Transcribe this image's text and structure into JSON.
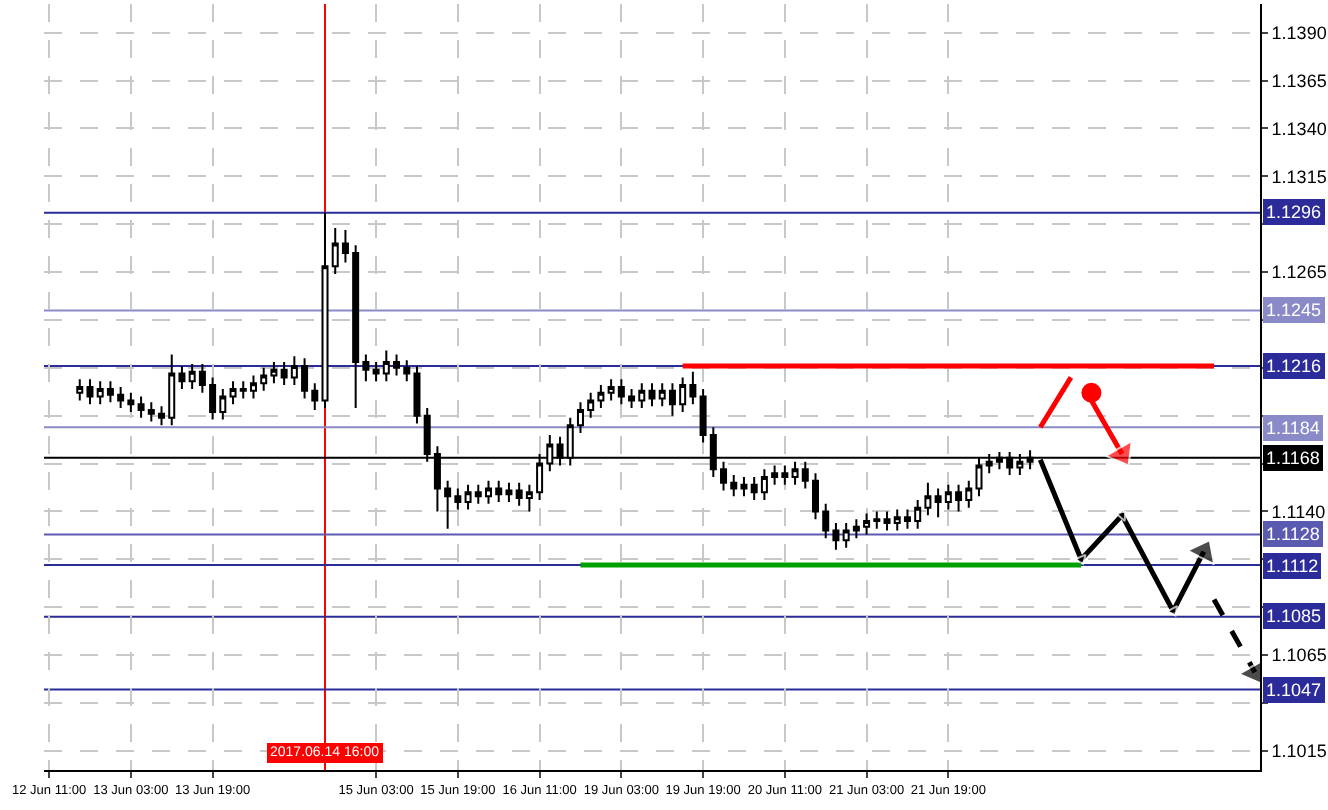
{
  "chart_data": {
    "type": "candlestick",
    "color": "#000000",
    "categories": [
      "12 Jun 11:00",
      null,
      null,
      null,
      null,
      null,
      null,
      null,
      "13 Jun 03:00",
      null,
      null,
      null,
      null,
      null,
      null,
      null,
      "13 Jun 19:00",
      null,
      null,
      null,
      null,
      null,
      null,
      null,
      null,
      null,
      null,
      "2017.06.14 16:00",
      null,
      null,
      null,
      null,
      "15 Jun 03:00",
      null,
      null,
      null,
      null,
      null,
      null,
      null,
      "15 Jun 19:00",
      null,
      null,
      null,
      null,
      null,
      null,
      null,
      "16 Jun 11:00",
      null,
      null,
      null,
      null,
      null,
      null,
      null,
      "19 Jun 03:00",
      null,
      null,
      null,
      null,
      null,
      null,
      null,
      "19 Jun 19:00",
      null,
      null,
      null,
      null,
      null,
      null,
      null,
      "20 Jun 11:00",
      null,
      null,
      null,
      null,
      null,
      null,
      null,
      "21 Jun 03:00",
      null,
      null,
      null,
      null,
      null,
      null,
      null,
      "21 Jun 19:00",
      null,
      null,
      null,
      null,
      null,
      null,
      null,
      null,
      null,
      null,
      null,
      null,
      null,
      null,
      null,
      null,
      null,
      null,
      null,
      null,
      null,
      null,
      null,
      null,
      null,
      null,
      null,
      null,
      null,
      null
    ],
    "ohlc": [
      null,
      null,
      null,
      [
        1.1202,
        1.1209,
        1.1198,
        1.1205
      ],
      [
        1.1205,
        1.1209,
        1.1196,
        1.12
      ],
      [
        1.12,
        1.1208,
        1.1196,
        1.1204
      ],
      [
        1.1204,
        1.1208,
        1.1197,
        1.1201
      ],
      [
        1.1201,
        1.1205,
        1.1194,
        1.1198
      ],
      [
        1.1198,
        1.1202,
        1.1192,
        1.1196
      ],
      [
        1.1196,
        1.12,
        1.1189,
        1.1193
      ],
      [
        1.1193,
        1.1197,
        1.1187,
        1.1191
      ],
      [
        1.1191,
        1.1195,
        1.1185,
        1.1189
      ],
      [
        1.1189,
        1.1222,
        1.1185,
        1.1212
      ],
      [
        1.1212,
        1.1216,
        1.1204,
        1.1208
      ],
      [
        1.1208,
        1.1217,
        1.1204,
        1.1213
      ],
      [
        1.1213,
        1.1217,
        1.1202,
        1.1206
      ],
      [
        1.1206,
        1.121,
        1.1188,
        1.1192
      ],
      [
        1.1192,
        1.1204,
        1.1188,
        1.12
      ],
      [
        1.12,
        1.1208,
        1.1196,
        1.1204
      ],
      [
        1.1204,
        1.1208,
        1.1199,
        1.1203
      ],
      [
        1.1203,
        1.1211,
        1.1199,
        1.1207
      ],
      [
        1.1207,
        1.1215,
        1.1203,
        1.1211
      ],
      [
        1.1211,
        1.1218,
        1.1207,
        1.1214
      ],
      [
        1.1214,
        1.1218,
        1.1206,
        1.121
      ],
      [
        1.121,
        1.1221,
        1.1206,
        1.1216
      ],
      [
        1.1216,
        1.122,
        1.1199,
        1.1203
      ],
      [
        1.1203,
        1.1207,
        1.1193,
        1.1198
      ],
      [
        1.1198,
        1.1296,
        1.1194,
        1.1268
      ],
      [
        1.1268,
        1.1288,
        1.1264,
        1.128
      ],
      [
        1.128,
        1.1287,
        1.127,
        1.1275
      ],
      [
        1.1275,
        1.1279,
        1.1194,
        1.1218
      ],
      [
        1.1218,
        1.1222,
        1.1208,
        1.1214
      ],
      [
        1.1214,
        1.1218,
        1.1208,
        1.1212
      ],
      [
        1.1212,
        1.1224,
        1.1208,
        1.1218
      ],
      [
        1.1218,
        1.1222,
        1.1211,
        1.1215
      ],
      [
        1.1215,
        1.1219,
        1.1208,
        1.1212
      ],
      [
        1.1212,
        1.1216,
        1.1186,
        1.119
      ],
      [
        1.119,
        1.1194,
        1.1166,
        1.117
      ],
      [
        1.117,
        1.1174,
        1.114,
        1.1152
      ],
      [
        1.1152,
        1.1156,
        1.1131,
        1.1148
      ],
      [
        1.1148,
        1.1152,
        1.1141,
        1.1145
      ],
      [
        1.1145,
        1.1154,
        1.1141,
        1.115
      ],
      [
        1.115,
        1.1154,
        1.1144,
        1.1148
      ],
      [
        1.1148,
        1.1156,
        1.1144,
        1.1152
      ],
      [
        1.1152,
        1.1156,
        1.1145,
        1.1149
      ],
      [
        1.1149,
        1.1155,
        1.1145,
        1.1151
      ],
      [
        1.1151,
        1.1155,
        1.1143,
        1.1147
      ],
      [
        1.1147,
        1.1154,
        1.114,
        1.115
      ],
      [
        1.115,
        1.117,
        1.1146,
        1.1165
      ],
      [
        1.1165,
        1.118,
        1.1161,
        1.1175
      ],
      [
        1.1175,
        1.1179,
        1.1164,
        1.1168
      ],
      [
        1.1168,
        1.1189,
        1.1164,
        1.1185
      ],
      [
        1.1185,
        1.1197,
        1.1181,
        1.1193
      ],
      [
        1.1193,
        1.1202,
        1.1189,
        1.1198
      ],
      [
        1.1198,
        1.1206,
        1.1194,
        1.1202
      ],
      [
        1.1202,
        1.1209,
        1.1198,
        1.1205
      ],
      [
        1.1205,
        1.1209,
        1.1196,
        1.12
      ],
      [
        1.12,
        1.1204,
        1.1194,
        1.1198
      ],
      [
        1.1198,
        1.1207,
        1.1194,
        1.1203
      ],
      [
        1.1203,
        1.1207,
        1.1195,
        1.1199
      ],
      [
        1.1199,
        1.1207,
        1.1195,
        1.1203
      ],
      [
        1.1203,
        1.1207,
        1.119,
        1.1196
      ],
      [
        1.1196,
        1.121,
        1.1192,
        1.1206
      ],
      [
        1.1206,
        1.1213,
        1.1196,
        1.12
      ],
      [
        1.12,
        1.1204,
        1.1176,
        1.118
      ],
      [
        1.118,
        1.1184,
        1.1158,
        1.1162
      ],
      [
        1.1162,
        1.1166,
        1.1151,
        1.1155
      ],
      [
        1.1155,
        1.1159,
        1.1148,
        1.1152
      ],
      [
        1.1152,
        1.1158,
        1.1148,
        1.1154
      ],
      [
        1.1154,
        1.1158,
        1.1146,
        1.115
      ],
      [
        1.115,
        1.1162,
        1.1146,
        1.1158
      ],
      [
        1.1158,
        1.1164,
        1.1154,
        1.116
      ],
      [
        1.116,
        1.1164,
        1.1154,
        1.1158
      ],
      [
        1.1158,
        1.1166,
        1.1154,
        1.1162
      ],
      [
        1.1162,
        1.1166,
        1.1152,
        1.1156
      ],
      [
        1.1156,
        1.116,
        1.1136,
        1.114
      ],
      [
        1.114,
        1.1144,
        1.1126,
        1.113
      ],
      [
        1.113,
        1.1134,
        1.112,
        1.1125
      ],
      [
        1.1125,
        1.1134,
        1.1121,
        1.113
      ],
      [
        1.113,
        1.1136,
        1.1126,
        1.1132
      ],
      [
        1.1132,
        1.1139,
        1.1128,
        1.1135
      ],
      [
        1.1135,
        1.114,
        1.1131,
        1.1136
      ],
      [
        1.1136,
        1.114,
        1.113,
        1.1134
      ],
      [
        1.1134,
        1.1141,
        1.113,
        1.1137
      ],
      [
        1.1137,
        1.1141,
        1.1131,
        1.1135
      ],
      [
        1.1135,
        1.1146,
        1.1131,
        1.1142
      ],
      [
        1.1142,
        1.1155,
        1.1138,
        1.1148
      ],
      [
        1.1148,
        1.1152,
        1.1137,
        1.1145
      ],
      [
        1.1145,
        1.1154,
        1.1141,
        1.115
      ],
      [
        1.115,
        1.1154,
        1.114,
        1.1146
      ],
      [
        1.1146,
        1.1156,
        1.1142,
        1.1152
      ],
      [
        1.1152,
        1.1168,
        1.1148,
        1.1164
      ],
      [
        1.1164,
        1.117,
        1.116,
        1.1166
      ],
      [
        1.1166,
        1.1171,
        1.1162,
        1.1168
      ],
      [
        1.1168,
        1.1171,
        1.1159,
        1.1163
      ],
      [
        1.1163,
        1.117,
        1.1159,
        1.1166
      ],
      [
        1.1166,
        1.1172,
        1.1162,
        1.1168
      ],
      null,
      null,
      null,
      null,
      null,
      null,
      null,
      null,
      null,
      null,
      null,
      null,
      null,
      null,
      null,
      null,
      null,
      null,
      null,
      null,
      null,
      null
    ],
    "series": [
      {
        "type": "line",
        "color": "#ff0000",
        "values": [
          null,
          null,
          null,
          null,
          null,
          null,
          null,
          null,
          null,
          null,
          null,
          null,
          null,
          null,
          null,
          null,
          null,
          null,
          null,
          null,
          null,
          null,
          null,
          null,
          null,
          null,
          null,
          null,
          null,
          null,
          null,
          null,
          null,
          null,
          null,
          null,
          null,
          null,
          null,
          null,
          null,
          null,
          null,
          null,
          null,
          null,
          null,
          null,
          null,
          null,
          null,
          null,
          null,
          null,
          null,
          null,
          null,
          null,
          null,
          null,
          null,
          null,
          1.1216,
          null,
          null,
          null,
          null,
          null,
          null,
          null,
          null,
          null,
          null,
          null,
          null,
          null,
          null,
          null,
          null,
          null,
          null,
          null,
          null,
          null,
          null,
          null,
          null,
          null,
          null,
          null,
          null,
          null,
          null,
          null,
          null,
          null,
          null,
          null,
          null,
          null,
          null,
          null,
          null,
          null,
          null,
          null,
          null,
          null,
          null,
          null,
          null,
          null,
          null,
          null,
          1.1216,
          null,
          null,
          null,
          null
        ]
      },
      {
        "type": "line",
        "color": "#00a000",
        "values": [
          null,
          null,
          null,
          null,
          null,
          null,
          null,
          null,
          null,
          null,
          null,
          null,
          null,
          null,
          null,
          null,
          null,
          null,
          null,
          null,
          null,
          null,
          null,
          null,
          null,
          null,
          null,
          null,
          null,
          null,
          null,
          null,
          null,
          null,
          null,
          null,
          null,
          null,
          null,
          null,
          null,
          null,
          null,
          null,
          null,
          null,
          null,
          null,
          null,
          null,
          null,
          null,
          1.1112,
          null,
          null,
          null,
          null,
          null,
          null,
          null,
          null,
          null,
          null,
          null,
          null,
          null,
          null,
          null,
          null,
          null,
          null,
          null,
          null,
          null,
          null,
          null,
          null,
          null,
          null,
          null,
          null,
          null,
          null,
          null,
          null,
          null,
          null,
          null,
          null,
          null,
          null,
          null,
          null,
          null,
          null,
          null,
          null,
          null,
          null,
          null,
          null,
          1.1112,
          null,
          null,
          null,
          null,
          null,
          null,
          null,
          null,
          null,
          null,
          null,
          null,
          null,
          null,
          null,
          null,
          null
        ]
      },
      {
        "type": "line",
        "color": "#ff0000",
        "values": [
          null,
          null,
          null,
          null,
          null,
          null,
          null,
          null,
          null,
          null,
          null,
          null,
          null,
          null,
          null,
          null,
          null,
          null,
          null,
          null,
          null,
          null,
          null,
          null,
          null,
          null,
          null,
          null,
          null,
          null,
          null,
          null,
          null,
          null,
          null,
          null,
          null,
          null,
          null,
          null,
          null,
          null,
          null,
          null,
          null,
          null,
          null,
          null,
          null,
          null,
          null,
          null,
          null,
          null,
          null,
          null,
          null,
          null,
          null,
          null,
          null,
          null,
          null,
          null,
          null,
          null,
          null,
          null,
          null,
          null,
          null,
          null,
          null,
          null,
          null,
          null,
          null,
          null,
          null,
          null,
          null,
          null,
          null,
          null,
          null,
          null,
          null,
          null,
          null,
          null,
          null,
          null,
          null,
          null,
          null,
          null,
          null,
          1.1184,
          null,
          null,
          1.121,
          null,
          null,
          null,
          null,
          null,
          null,
          null,
          null,
          null,
          null,
          null,
          null,
          null,
          null,
          null,
          null,
          null,
          null
        ]
      },
      {
        "type": "scatter",
        "color": "#ff0000",
        "marker": "circle",
        "values": [
          null,
          null,
          null,
          null,
          null,
          null,
          null,
          null,
          null,
          null,
          null,
          null,
          null,
          null,
          null,
          null,
          null,
          null,
          null,
          null,
          null,
          null,
          null,
          null,
          null,
          null,
          null,
          null,
          null,
          null,
          null,
          null,
          null,
          null,
          null,
          null,
          null,
          null,
          null,
          null,
          null,
          null,
          null,
          null,
          null,
          null,
          null,
          null,
          null,
          null,
          null,
          null,
          null,
          null,
          null,
          null,
          null,
          null,
          null,
          null,
          null,
          null,
          null,
          null,
          null,
          null,
          null,
          null,
          null,
          null,
          null,
          null,
          null,
          null,
          null,
          null,
          null,
          null,
          null,
          null,
          null,
          null,
          null,
          null,
          null,
          null,
          null,
          null,
          null,
          null,
          null,
          null,
          null,
          null,
          null,
          null,
          null,
          null,
          null,
          null,
          null,
          null,
          1.1202,
          null,
          null,
          null,
          null,
          null,
          null,
          null,
          null,
          null,
          null,
          null,
          null,
          null,
          null,
          null,
          null
        ]
      },
      {
        "type": "line",
        "color": "#ff0000",
        "marker": "triangle",
        "values": [
          null,
          null,
          null,
          null,
          null,
          null,
          null,
          null,
          null,
          null,
          null,
          null,
          null,
          null,
          null,
          null,
          null,
          null,
          null,
          null,
          null,
          null,
          null,
          null,
          null,
          null,
          null,
          null,
          null,
          null,
          null,
          null,
          null,
          null,
          null,
          null,
          null,
          null,
          null,
          null,
          null,
          null,
          null,
          null,
          null,
          null,
          null,
          null,
          null,
          null,
          null,
          null,
          null,
          null,
          null,
          null,
          null,
          null,
          null,
          null,
          null,
          null,
          null,
          null,
          null,
          null,
          null,
          null,
          null,
          null,
          null,
          null,
          null,
          null,
          null,
          null,
          null,
          null,
          null,
          null,
          null,
          null,
          null,
          null,
          null,
          null,
          null,
          null,
          null,
          null,
          null,
          null,
          null,
          null,
          null,
          null,
          null,
          null,
          null,
          null,
          null,
          null,
          1.1198,
          null,
          null,
          1.117,
          null,
          null,
          null,
          null,
          null,
          null,
          null,
          null,
          null,
          null,
          null,
          null,
          null
        ]
      },
      {
        "type": "line",
        "color": "#000000",
        "marker": "triangle",
        "values": [
          null,
          null,
          null,
          null,
          null,
          null,
          null,
          null,
          null,
          null,
          null,
          null,
          null,
          null,
          null,
          null,
          null,
          null,
          null,
          null,
          null,
          null,
          null,
          null,
          null,
          null,
          null,
          null,
          null,
          null,
          null,
          null,
          null,
          null,
          null,
          null,
          null,
          null,
          null,
          null,
          null,
          null,
          null,
          null,
          null,
          null,
          null,
          null,
          null,
          null,
          null,
          null,
          null,
          null,
          null,
          null,
          null,
          null,
          null,
          null,
          null,
          null,
          null,
          null,
          null,
          null,
          null,
          null,
          null,
          null,
          null,
          null,
          null,
          null,
          null,
          null,
          null,
          null,
          null,
          null,
          null,
          null,
          null,
          null,
          null,
          null,
          null,
          null,
          null,
          null,
          null,
          null,
          null,
          null,
          null,
          null,
          null,
          1.1167,
          null,
          null,
          null,
          1.1115,
          null,
          null,
          null,
          1.1138,
          null,
          null,
          null,
          null,
          1.1088,
          null,
          null,
          1.1119,
          null,
          null,
          null,
          null,
          null
        ]
      },
      {
        "type": "line",
        "color": "#000000",
        "marker": "triangle",
        "line_style": "dashed",
        "values": [
          null,
          null,
          null,
          null,
          null,
          null,
          null,
          null,
          null,
          null,
          null,
          null,
          null,
          null,
          null,
          null,
          null,
          null,
          null,
          null,
          null,
          null,
          null,
          null,
          null,
          null,
          null,
          null,
          null,
          null,
          null,
          null,
          null,
          null,
          null,
          null,
          null,
          null,
          null,
          null,
          null,
          null,
          null,
          null,
          null,
          null,
          null,
          null,
          null,
          null,
          null,
          null,
          null,
          null,
          null,
          null,
          null,
          null,
          null,
          null,
          null,
          null,
          null,
          null,
          null,
          null,
          null,
          null,
          null,
          null,
          null,
          null,
          null,
          null,
          null,
          null,
          null,
          null,
          null,
          null,
          null,
          null,
          null,
          null,
          null,
          null,
          null,
          null,
          null,
          null,
          null,
          null,
          null,
          null,
          null,
          null,
          null,
          null,
          null,
          null,
          null,
          null,
          null,
          null,
          null,
          null,
          null,
          null,
          null,
          null,
          null,
          null,
          null,
          null,
          1.1094,
          null,
          null,
          null,
          1.1056
        ]
      }
    ],
    "ylim": [
      1.1005,
      1.1405
    ],
    "yticks": [
      {
        "value": 1.1015,
        "label": "1.1015"
      },
      {
        "value": 1.104,
        "label": null
      },
      {
        "value": 1.1065,
        "label": "1.1065"
      },
      {
        "value": 1.109,
        "label": null
      },
      {
        "value": 1.1115,
        "label": null
      },
      {
        "value": 1.114,
        "label": "1.1140"
      },
      {
        "value": 1.1165,
        "label": null
      },
      {
        "value": 1.119,
        "label": null
      },
      {
        "value": 1.1215,
        "label": null
      },
      {
        "value": 1.124,
        "label": null
      },
      {
        "value": 1.1265,
        "label": "1.1265"
      },
      {
        "value": 1.129,
        "label": null
      },
      {
        "value": 1.1315,
        "label": "1.1315"
      },
      {
        "value": 1.134,
        "label": "1.1340"
      },
      {
        "value": 1.1365,
        "label": "1.1365"
      },
      {
        "value": 1.139,
        "label": "1.1390"
      }
    ],
    "grid": true,
    "ref_lines": [
      {
        "axis": "x",
        "value": "2017.06.14 16:00",
        "color": "#ff0000"
      },
      {
        "axis": "y",
        "value": 1.1296,
        "label": "1.1296",
        "color": "#2b2b9a"
      },
      {
        "axis": "y",
        "value": 1.1245,
        "label": "1.1245",
        "color": "#8a8ac8"
      },
      {
        "axis": "y",
        "value": 1.1216,
        "label": "1.1216",
        "color": "#2b2b9a"
      },
      {
        "axis": "y",
        "value": 1.1184,
        "label": "1.1184",
        "color": "#8a8ac8"
      },
      {
        "axis": "y",
        "value": 1.1168,
        "label": "1.1168",
        "color": "#000000"
      },
      {
        "axis": "y",
        "value": 1.1128,
        "label": "1.1128",
        "color": "#5a5ab0"
      },
      {
        "axis": "y",
        "value": 1.1112,
        "label": "1.1112",
        "color": "#2b2b9a"
      },
      {
        "axis": "y",
        "value": 1.1085,
        "label": "1.1085",
        "color": "#2b2b9a"
      },
      {
        "axis": "y",
        "value": 1.1047,
        "label": "1.1047",
        "color": "#2b2b9a"
      }
    ]
  }
}
